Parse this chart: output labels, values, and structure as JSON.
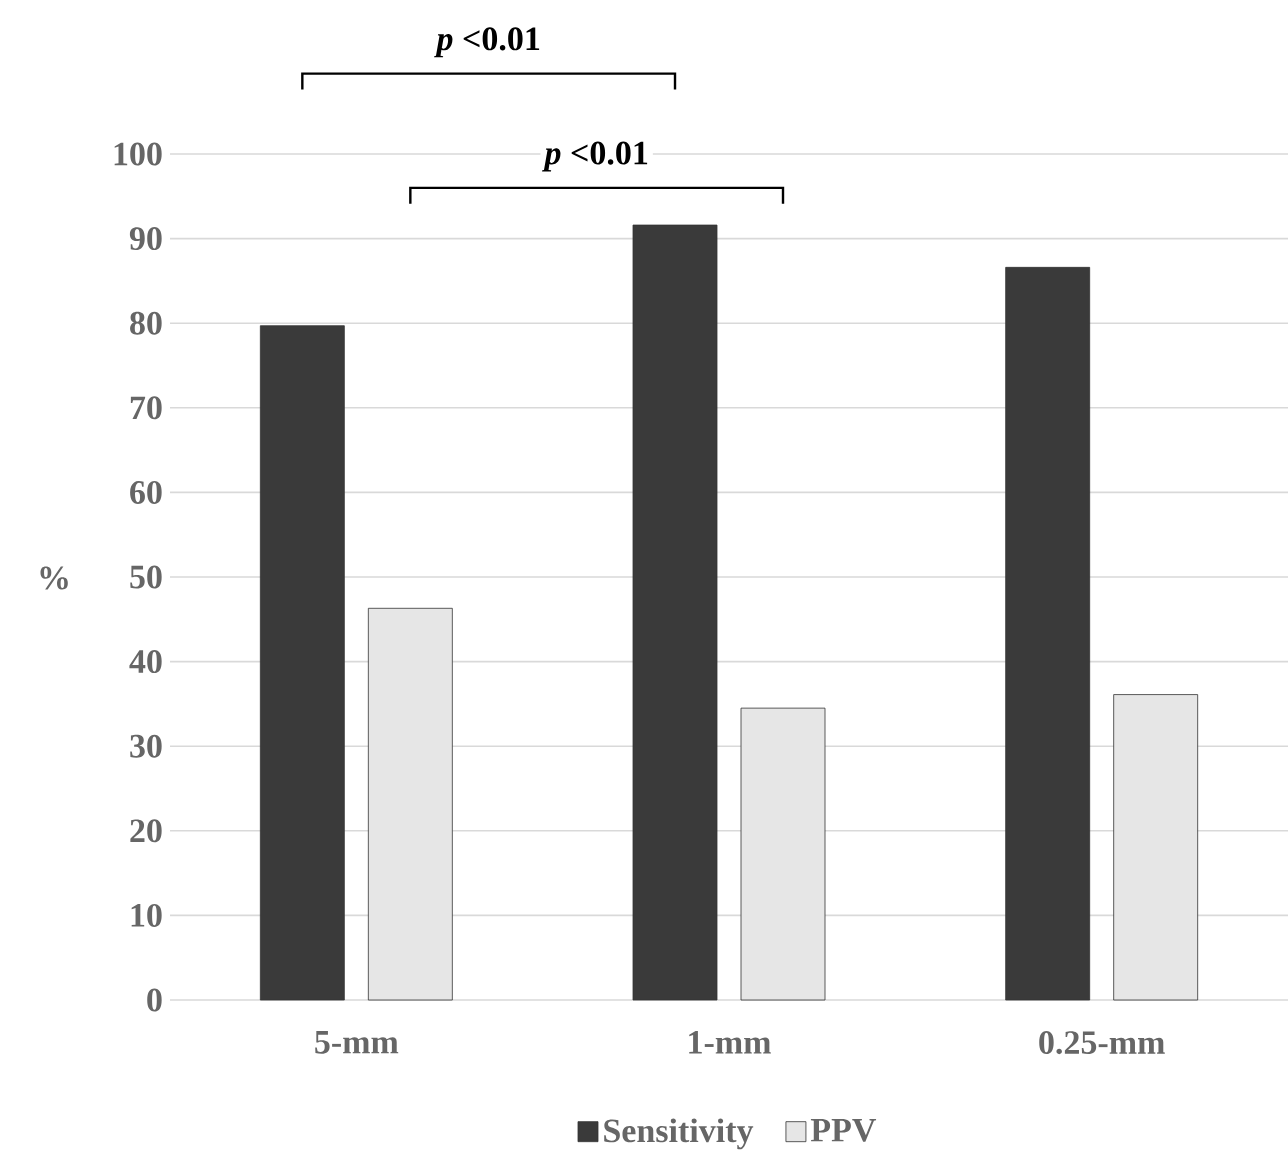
{
  "chart_data": {
    "type": "bar",
    "ylabel": "%",
    "categories": [
      "5-mm",
      "1-mm",
      "0.25-mm"
    ],
    "series": [
      {
        "name": "Sensitivity",
        "color": "#3a3a3a",
        "values": [
          79.7,
          91.6,
          86.6
        ]
      },
      {
        "name": "PPV",
        "color": "#e6e6e6",
        "values": [
          46.3,
          34.5,
          36.1
        ]
      }
    ],
    "ylim": [
      0,
      100
    ],
    "yticks": [
      0,
      10,
      20,
      30,
      40,
      50,
      60,
      70,
      80,
      90,
      100
    ],
    "grid": "y",
    "legend": "bottom",
    "annotations": [
      "*p* <0.01",
      "*p* <0.01"
    ]
  }
}
